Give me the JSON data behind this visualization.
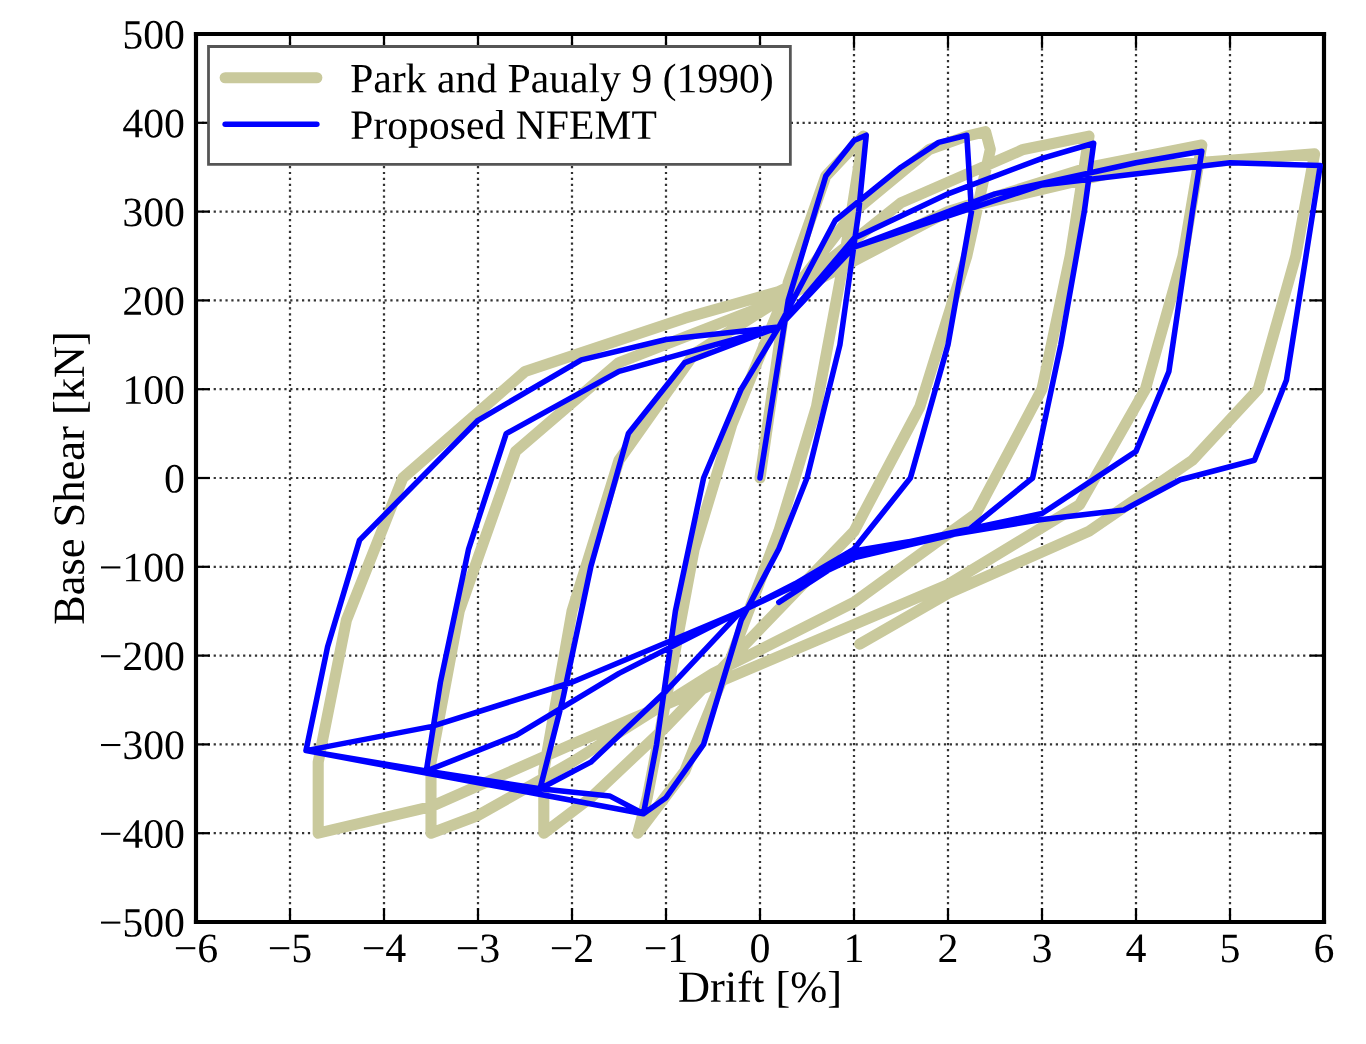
{
  "chart_data": {
    "type": "line",
    "xlabel": "Drift [%]",
    "ylabel": "Base Shear [kN]",
    "xlim": [
      -6,
      6
    ],
    "ylim": [
      -500,
      500
    ],
    "xticks": [
      {
        "value": -6,
        "label": "−6"
      },
      {
        "value": -5,
        "label": "−5"
      },
      {
        "value": -4,
        "label": "−4"
      },
      {
        "value": -3,
        "label": "−3"
      },
      {
        "value": -2,
        "label": "−2"
      },
      {
        "value": -1,
        "label": "−1"
      },
      0,
      1,
      2,
      3,
      4,
      5,
      6
    ],
    "yticks": [
      {
        "value": -500,
        "label": "−500"
      },
      {
        "value": -400,
        "label": "−400"
      },
      {
        "value": -300,
        "label": "−300"
      },
      {
        "value": -200,
        "label": "−200"
      },
      {
        "value": -100,
        "label": "−100"
      },
      0,
      100,
      200,
      300,
      400,
      500
    ],
    "grid": true,
    "legend": "top left",
    "line_style": "solid",
    "marker": "none",
    "series": [
      {
        "name": "Park and Paualy 9 (1990)",
        "color": "#c9c99c",
        "x": [
          0,
          0.3,
          0.7,
          1.1,
          0.9,
          0.6,
          0.2,
          -0.3,
          -0.8,
          -1.3,
          -1.2,
          -1.0,
          -0.7,
          -0.3,
          0.2,
          1.0,
          1.8,
          2.2,
          2.4,
          2.45,
          2.2,
          1.7,
          1.0,
          0,
          -1.0,
          -1.8,
          -2.3,
          -2.3,
          -2.0,
          -1.5,
          -0.7,
          0.2,
          1.5,
          2.8,
          3.5,
          3.3,
          3.0,
          2.3,
          1.0,
          -0.5,
          -2.0,
          -3.0,
          -3.5,
          -3.5,
          -3.2,
          -2.6,
          -1.5,
          0.2,
          2,
          3.5,
          4.7,
          4.5,
          4.1,
          3.4,
          2,
          0,
          -2,
          -3.5,
          -4.7,
          -4.7,
          -4.4,
          -3.8,
          -2.5,
          -0.8,
          0.2,
          2,
          4,
          5.9,
          5.7,
          5.3,
          4.6,
          3.5,
          2,
          1.06
        ],
        "values": [
          0,
          220,
          340,
          385,
          250,
          80,
          -60,
          -200,
          -330,
          -400,
          -360,
          -250,
          -80,
          60,
          190,
          300,
          370,
          385,
          390,
          370,
          250,
          80,
          -60,
          -170,
          -280,
          -360,
          -400,
          -330,
          -150,
          20,
          140,
          200,
          310,
          370,
          385,
          250,
          100,
          -40,
          -140,
          -220,
          -320,
          -380,
          -400,
          -320,
          -150,
          30,
          130,
          200,
          300,
          350,
          375,
          250,
          100,
          -30,
          -120,
          -210,
          -300,
          -370,
          -400,
          -320,
          -160,
          0,
          120,
          180,
          210,
          300,
          350,
          365,
          250,
          100,
          20,
          -60,
          -130,
          -187
        ]
      },
      {
        "name": "Proposed NFEMT",
        "color": "#0000ff",
        "x": [
          0,
          0.3,
          0.7,
          1.0,
          1.13,
          1.05,
          0.85,
          0.5,
          0.2,
          -0.2,
          -0.6,
          -1.0,
          -1.24,
          -1.1,
          -0.9,
          -0.6,
          -0.2,
          0.2,
          0.8,
          1.5,
          1.9,
          2.2,
          2.25,
          2.0,
          1.6,
          1.0,
          0.2,
          -0.2,
          -1.0,
          -1.8,
          -2.34,
          -2.1,
          -1.8,
          -1.4,
          -0.8,
          0.2,
          1.0,
          2.0,
          3.0,
          3.55,
          3.45,
          3.2,
          2.9,
          2.2,
          1.0,
          -0.2,
          -1.5,
          -2.6,
          -3.55,
          -3.4,
          -3.1,
          -2.7,
          -1.5,
          0.2,
          1.0,
          2.5,
          4.0,
          4.7,
          4.6,
          4.35,
          4.0,
          3.0,
          1.0,
          -0.2,
          -2.0,
          -3.5,
          -4.83,
          -3.55,
          -2.34,
          -1.6,
          -1.24,
          -4.83,
          -4.6,
          -4.26,
          -3.0,
          -1.9,
          -1.0,
          0.2,
          1.0,
          3.0,
          5.0,
          5.96,
          5.6,
          5.26,
          4.47,
          3.87,
          2.98,
          1.06,
          0.2
        ],
        "values": [
          0,
          200,
          340,
          380,
          386,
          300,
          150,
          0,
          -80,
          -160,
          -300,
          -360,
          -378,
          -300,
          -150,
          0,
          100,
          170,
          290,
          350,
          378,
          386,
          300,
          150,
          0,
          -80,
          -130,
          -150,
          -240,
          -320,
          -350,
          -250,
          -100,
          50,
          130,
          170,
          270,
          320,
          360,
          377,
          300,
          150,
          0,
          -60,
          -90,
          -150,
          -220,
          -290,
          -330,
          -230,
          -80,
          50,
          120,
          170,
          260,
          320,
          355,
          368,
          300,
          120,
          30,
          -40,
          -85,
          -150,
          -230,
          -280,
          -307,
          -330,
          -350,
          -358,
          -378,
          -307,
          -190,
          -70,
          65,
          133,
          156,
          170,
          260,
          330,
          355,
          352,
          110,
          20,
          -2,
          -36,
          -47,
          -81,
          -140
        ]
      }
    ]
  }
}
